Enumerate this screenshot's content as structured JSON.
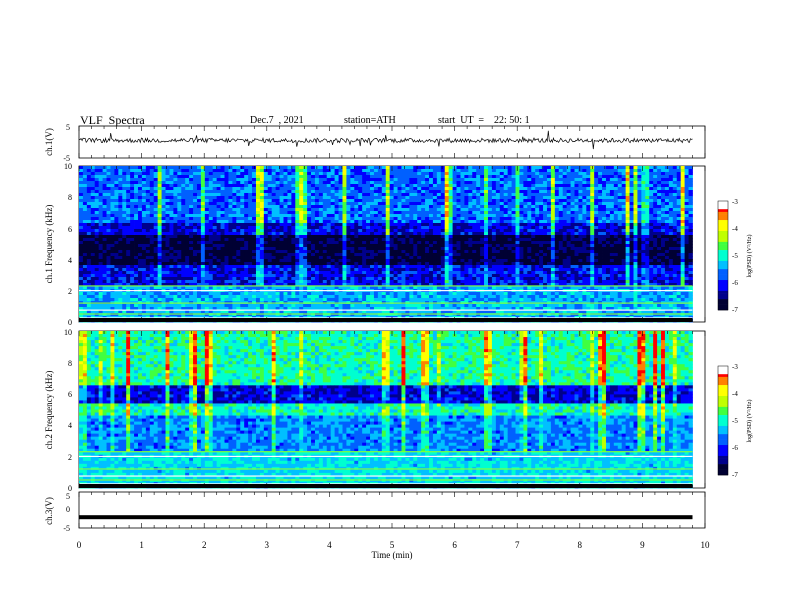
{
  "header": {
    "title": "VLF  Spectra",
    "date": "Dec.7  , 2021",
    "station": "station=ATH",
    "start": "start  UT  =    22: 50: 1"
  },
  "chart_data": [
    {
      "type": "line",
      "panel": "ch1-waveform",
      "ylabel": "ch.1(V)",
      "ylim": [
        -5,
        5
      ],
      "yticks": [
        "5",
        "-5"
      ],
      "series": [
        {
          "values_note_level": 0.5
        }
      ],
      "xlim": [
        0,
        10
      ]
    },
    {
      "type": "heatmap",
      "panel": "ch1-spectrogram",
      "ylabel": "ch.1  Frequency  (kHz)",
      "ylim": [
        0,
        10
      ],
      "yticks": [
        "0",
        "2",
        "4",
        "6",
        "8",
        "10"
      ],
      "xlim": [
        0,
        9.8
      ],
      "colorbar": {
        "label": "log(PSD) (V²/Hz)",
        "ticks": [
          "-3",
          "-4",
          "-5",
          "-6",
          "-7"
        ],
        "range": [
          -7,
          -3
        ]
      }
    },
    {
      "type": "heatmap",
      "panel": "ch2-spectrogram",
      "ylabel": "ch.2  Frequency  (kHz)",
      "ylim": [
        0,
        10
      ],
      "yticks": [
        "0",
        "2",
        "4",
        "6",
        "8",
        "10"
      ],
      "xlim": [
        0,
        9.8
      ],
      "colorbar": {
        "label": "log(PSD) (V²/Hz)",
        "ticks": [
          "-3",
          "-4",
          "-5",
          "-6",
          "-7"
        ],
        "range": [
          -7,
          -3
        ]
      }
    },
    {
      "type": "line",
      "panel": "ch3-waveform",
      "ylabel": "ch.3(V)",
      "ylim": [
        -5,
        5
      ],
      "yticks": [
        "5",
        "0",
        "-5"
      ],
      "series": [
        {
          "constant_value": -2
        }
      ],
      "xlabel": "Time  (min)",
      "xlim": [
        0,
        10
      ],
      "xticks": [
        "0",
        "1",
        "2",
        "3",
        "4",
        "5",
        "6",
        "7",
        "8",
        "9",
        "10"
      ]
    }
  ],
  "colors": {
    "frame": "#000000",
    "colormap": [
      "#000000",
      "#0000cc",
      "#0040ff",
      "#00a0ff",
      "#00ffff",
      "#00ff80",
      "#80ff00",
      "#ffff00",
      "#ff8000",
      "#ff0000",
      "#ffffff"
    ]
  }
}
